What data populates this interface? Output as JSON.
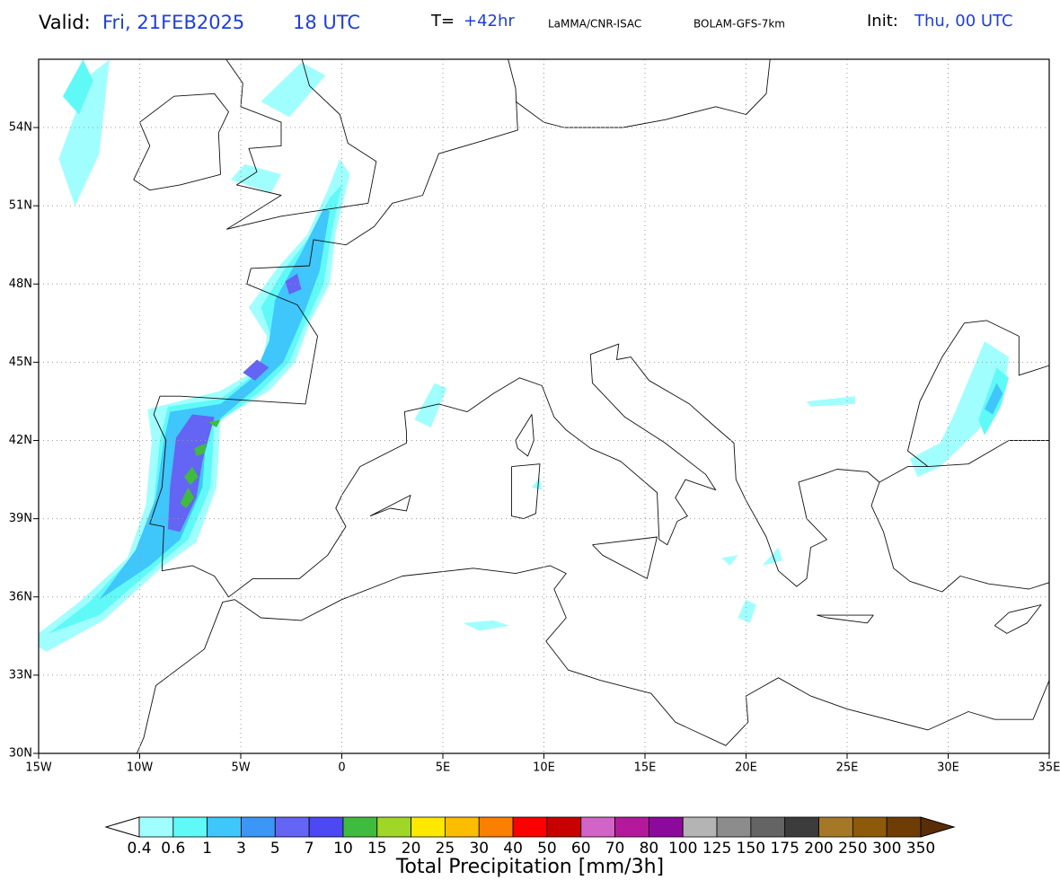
{
  "header": {
    "valid_label": "Valid:",
    "valid_date": "Fri, 21FEB2025",
    "valid_time": "18 UTC",
    "t_label": "T=",
    "t_value": "+42hr",
    "source": "LaMMA/CNR-ISAC",
    "model": "BOLAM-GFS-7km",
    "init_label": "Init:",
    "init_value": "Thu, 00 UTC"
  },
  "map": {
    "lon_labels": [
      "15W",
      "10W",
      "5W",
      "0",
      "5E",
      "10E",
      "15E",
      "20E",
      "25E",
      "30E",
      "35E"
    ],
    "lat_labels": [
      "30N",
      "33N",
      "36N",
      "39N",
      "42N",
      "45N",
      "48N",
      "51N",
      "54N"
    ]
  },
  "colorbar": {
    "title": "Total Precipitation [mm/3h]",
    "levels": [
      0.4,
      0.6,
      1,
      3,
      5,
      7,
      10,
      15,
      20,
      25,
      30,
      40,
      50,
      60,
      70,
      80,
      100,
      125,
      150,
      175,
      200,
      250,
      300,
      350
    ],
    "colors": [
      "#ffffff",
      "#a0fffe",
      "#5ffaf7",
      "#3fc6fb",
      "#3b96f6",
      "#6464f5",
      "#4b48f4",
      "#3fbb3f",
      "#9fd628",
      "#fde800",
      "#fbbd00",
      "#fb8000",
      "#fb0000",
      "#c80000",
      "#d264c8",
      "#b4199b",
      "#8c0a9b",
      "#b4b4b4",
      "#8c8c8c",
      "#646464",
      "#3c3c3c",
      "#a57828",
      "#8c5a0a",
      "#6e3c05",
      "#5a2d05"
    ]
  }
}
